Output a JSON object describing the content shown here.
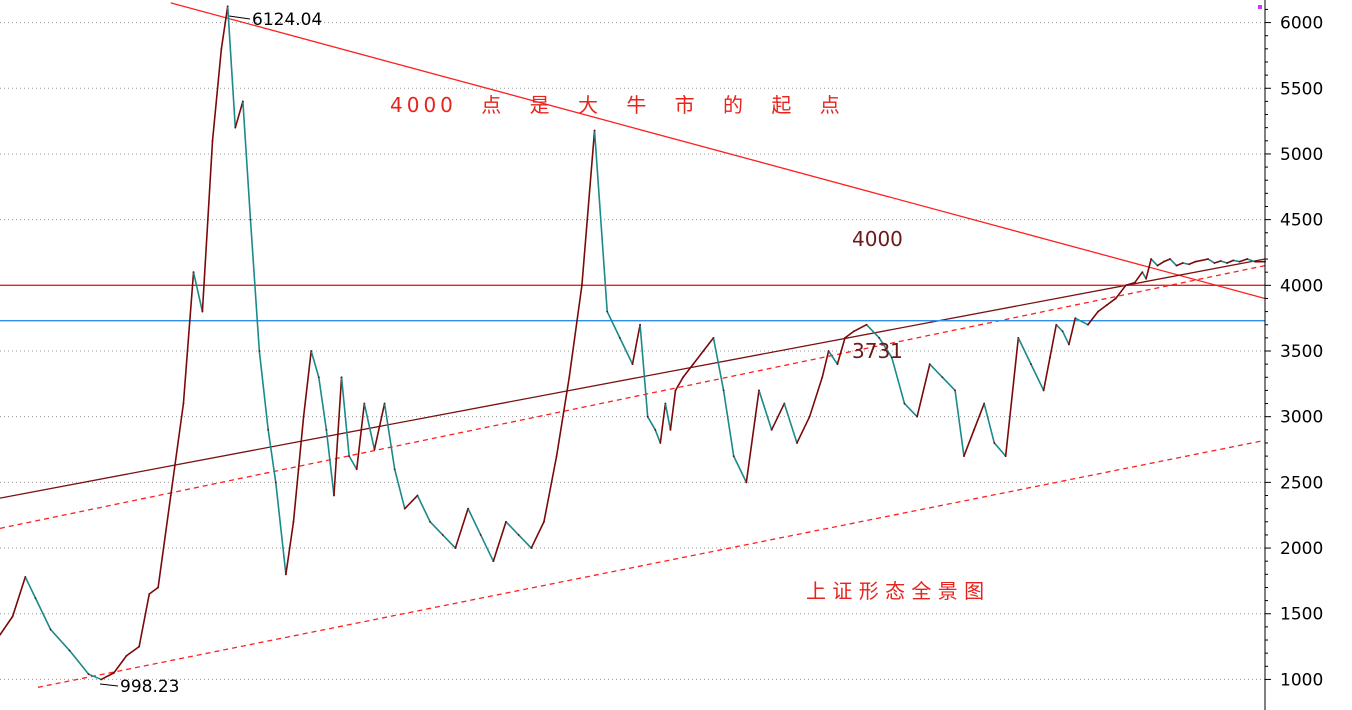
{
  "chart_data": {
    "type": "line",
    "title": "",
    "xlabel": "",
    "ylabel": "",
    "ylim": [
      940,
      6170
    ],
    "y_ticks": [
      "6000",
      "5500",
      "5000",
      "4500",
      "4000",
      "3500",
      "3000",
      "2500",
      "2000",
      "1500",
      "1000"
    ],
    "grid": true,
    "x_index_range": [
      0,
      1000
    ],
    "series": [
      {
        "style": "price-line",
        "x": [
          0,
          10,
          20,
          28,
          40,
          55,
          70,
          80,
          90,
          100,
          110,
          118,
          125,
          135,
          145,
          153,
          160,
          168,
          175,
          180,
          186,
          192,
          198,
          205,
          212,
          218,
          226,
          232,
          236,
          240,
          246,
          252,
          258,
          264,
          270,
          276,
          282,
          288,
          296,
          304,
          312,
          320,
          330,
          340,
          350,
          360,
          370,
          380,
          390,
          400,
          410,
          420,
          430,
          440,
          450,
          460,
          470,
          480,
          490,
          500,
          506,
          512,
          518,
          522,
          526,
          530,
          534,
          540,
          548,
          556,
          564,
          572,
          580,
          590,
          600,
          610,
          620,
          630,
          640,
          650,
          655,
          662,
          668,
          675,
          685,
          695,
          705,
          715,
          725,
          735,
          745,
          755,
          762,
          770,
          778,
          786,
          795,
          805,
          815,
          825,
          830,
          835,
          840,
          845,
          850,
          860,
          868,
          875,
          882,
          890,
          897,
          903,
          906,
          910,
          915,
          920,
          925,
          930,
          935,
          940,
          945,
          950,
          955,
          960,
          965,
          970,
          975,
          980,
          986,
          992,
          1000
        ],
        "y": [
          1340,
          1480,
          1780,
          1620,
          1380,
          1220,
          1040,
          1000,
          1050,
          1180,
          1250,
          1650,
          1700,
          2400,
          3100,
          4100,
          3800,
          5100,
          5800,
          6124,
          5200,
          5400,
          4500,
          3500,
          2900,
          2500,
          1800,
          2200,
          2600,
          3000,
          3500,
          3300,
          2900,
          2400,
          3300,
          2700,
          2600,
          3100,
          2750,
          3100,
          2600,
          2300,
          2400,
          2200,
          2100,
          2000,
          2300,
          2100,
          1900,
          2200,
          2100,
          2000,
          2200,
          2700,
          3300,
          4000,
          5178,
          3800,
          3600,
          3400,
          3700,
          3000,
          2900,
          2800,
          3100,
          2900,
          3200,
          3300,
          3400,
          3500,
          3600,
          3200,
          2700,
          2500,
          3200,
          2900,
          3100,
          2800,
          3000,
          3300,
          3500,
          3400,
          3600,
          3650,
          3700,
          3600,
          3450,
          3100,
          3000,
          3400,
          3300,
          3200,
          2700,
          2900,
          3100,
          2800,
          2700,
          3600,
          3400,
          3200,
          3450,
          3700,
          3650,
          3550,
          3750,
          3700,
          3800,
          3850,
          3900,
          4000,
          4020,
          4100,
          4050,
          4200,
          4150,
          4180,
          4200,
          4150,
          4170,
          4160,
          4180,
          4190,
          4200,
          4170,
          4185,
          4170,
          4190,
          4180,
          4200,
          4180,
          4180
        ]
      }
    ],
    "annotations": {
      "high_label": "6124.04",
      "low_label": "998.23",
      "level_label_4000": "4000",
      "level_label_3731": "3731",
      "headline": "4000 点 是 大 牛 市 的 起 点",
      "caption": "上 证 形 态 全 景 图"
    },
    "levels": [
      {
        "value": 4000,
        "color": "#e8231c"
      },
      {
        "value": 3731,
        "color": "#2f8fe6"
      }
    ],
    "trendlines": [
      {
        "kind": "solid",
        "color": "#ff2020",
        "from": [
          135,
          6150
        ],
        "to": [
          1000,
          3900
        ]
      },
      {
        "kind": "solid",
        "color": "#7a1010",
        "from": [
          0,
          2380
        ],
        "to": [
          1000,
          4200
        ]
      },
      {
        "kind": "dashed",
        "color": "#ff2020",
        "from": [
          0,
          2150
        ],
        "to": [
          1000,
          4150
        ]
      },
      {
        "kind": "dashed",
        "color": "#ff2020",
        "from": [
          30,
          940
        ],
        "to": [
          1000,
          2820
        ]
      }
    ],
    "colors": {
      "up": "#7a0a0a",
      "down": "#1a8a8a",
      "grid": "#9a9a9a",
      "axis": "#000000",
      "headline": "#e8231c",
      "caption": "#e8231c",
      "level_label": "#6b1a1a"
    }
  }
}
